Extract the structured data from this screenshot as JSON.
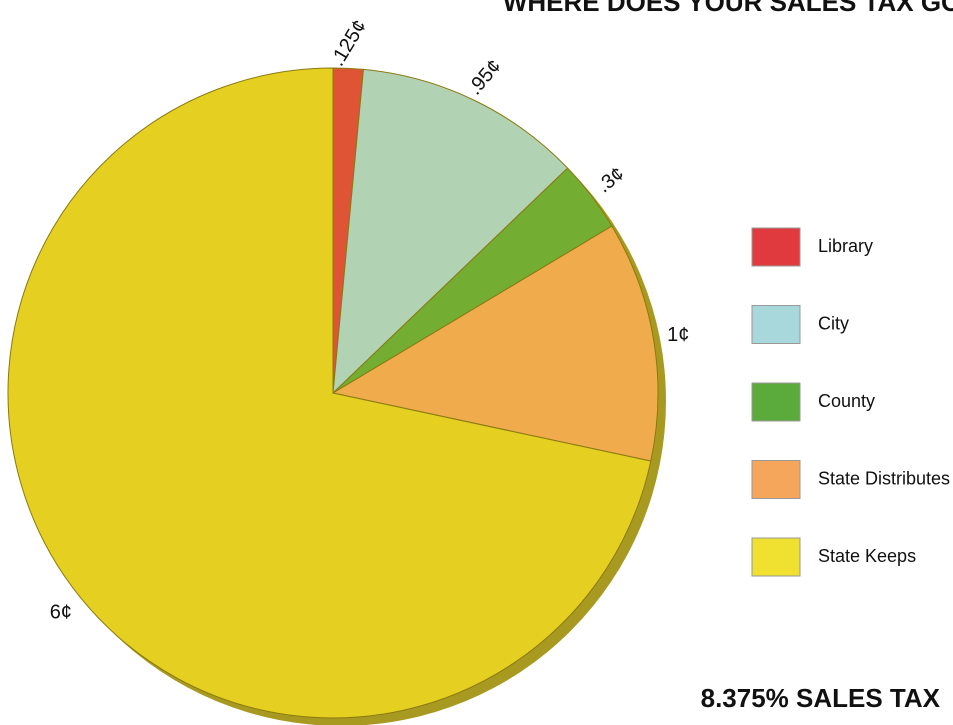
{
  "chart_data": {
    "type": "pie",
    "title": "WHERE DOES YOUR SALES TAX GO?",
    "subtitle": "8.375% SALES TAX",
    "categories": [
      "Library",
      "City",
      "County",
      "State Distributes",
      "State Keeps"
    ],
    "values": [
      0.125,
      0.95,
      0.3,
      1,
      6
    ],
    "value_labels": [
      ".125¢",
      ".95¢",
      ".3¢",
      "1¢",
      "6¢"
    ],
    "colors": [
      "#e03a3e",
      "#a8d8dc",
      "#5aaa3c",
      "#f5a65b",
      "#f0e030"
    ],
    "legend": "right"
  }
}
